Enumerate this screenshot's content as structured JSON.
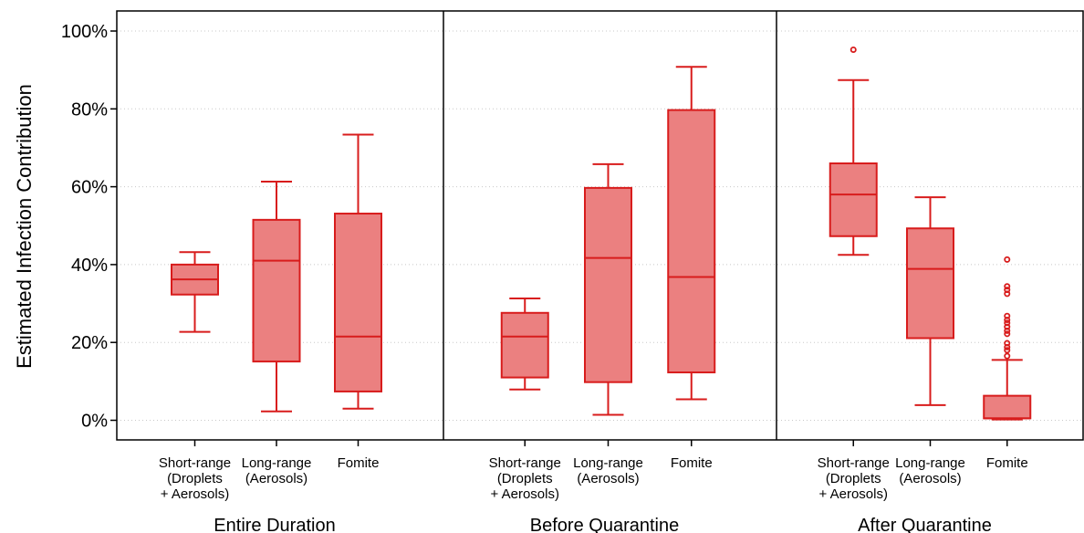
{
  "chart_data": {
    "type": "box",
    "ylabel": "Estimated Infection Contribution",
    "yticks": [
      "0%",
      "20%",
      "40%",
      "60%",
      "80%",
      "100%"
    ],
    "ylim": [
      -6,
      105
    ],
    "grid": true,
    "colors": {
      "box_fill": "#eb8080",
      "box_stroke": "#d81c1c",
      "grid": "#c8c8c8",
      "axis": "#000000"
    },
    "panels": [
      {
        "label": "Entire Duration",
        "boxes": [
          {
            "label": [
              "Short-range",
              "(Droplets",
              "+ Aerosols)"
            ],
            "whisker_low": 22.7,
            "q1": 32.3,
            "median": 36.2,
            "q3": 40.0,
            "whisker_high": 43.2,
            "outliers": []
          },
          {
            "label": [
              "Long-range",
              "(Aerosols)"
            ],
            "whisker_low": 2.3,
            "q1": 15.1,
            "median": 41.0,
            "q3": 51.5,
            "whisker_high": 61.3,
            "outliers": []
          },
          {
            "label": [
              "Fomite"
            ],
            "whisker_low": 3.0,
            "q1": 7.4,
            "median": 21.5,
            "q3": 53.1,
            "whisker_high": 73.4,
            "outliers": []
          }
        ]
      },
      {
        "label": "Before Quarantine",
        "boxes": [
          {
            "label": [
              "Short-range",
              "(Droplets",
              "+ Aerosols)"
            ],
            "whisker_low": 7.9,
            "q1": 11.0,
            "median": 21.5,
            "q3": 27.6,
            "whisker_high": 31.3,
            "outliers": []
          },
          {
            "label": [
              "Long-range",
              "(Aerosols)"
            ],
            "whisker_low": 1.4,
            "q1": 9.8,
            "median": 41.7,
            "q3": 59.7,
            "whisker_high": 65.8,
            "outliers": []
          },
          {
            "label": [
              "Fomite"
            ],
            "whisker_low": 5.4,
            "q1": 12.3,
            "median": 36.8,
            "q3": 79.7,
            "whisker_high": 90.8,
            "outliers": []
          }
        ]
      },
      {
        "label": "After Quarantine",
        "boxes": [
          {
            "label": [
              "Short-range",
              "(Droplets",
              "+ Aerosols)"
            ],
            "whisker_low": 42.5,
            "q1": 47.3,
            "median": 58.0,
            "q3": 66.0,
            "whisker_high": 87.4,
            "outliers": [
              95.2
            ]
          },
          {
            "label": [
              "Long-range",
              "(Aerosols)"
            ],
            "whisker_low": 3.9,
            "q1": 21.1,
            "median": 38.9,
            "q3": 49.3,
            "whisker_high": 57.3,
            "outliers": []
          },
          {
            "label": [
              "Fomite"
            ],
            "whisker_low": 0.2,
            "q1": 0.5,
            "median": 0.5,
            "q3": 6.3,
            "whisker_high": 15.5,
            "outliers": [
              16.5,
              18.0,
              18.8,
              19.8,
              22.2,
              23.0,
              24.0,
              25.0,
              25.8,
              26.8,
              32.5,
              33.5,
              34.4,
              41.3
            ]
          }
        ]
      }
    ]
  }
}
